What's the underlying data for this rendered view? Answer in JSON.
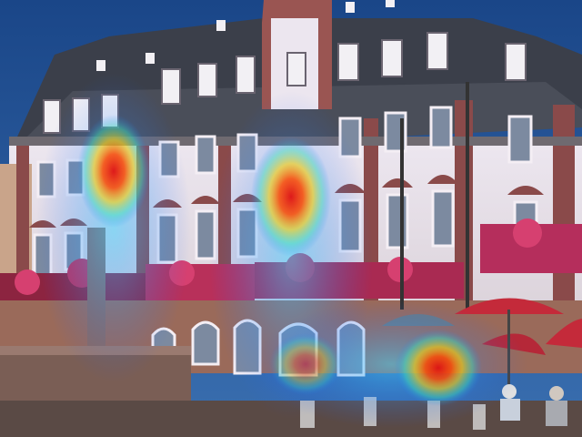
{
  "scene": {
    "subject": "baroque-town-hall-facade",
    "overlay": "attention-heatmap",
    "palette": {
      "sky": "#1e4f8f",
      "roof": "#3b3f4a",
      "facade": "#e8e2ea",
      "stone": "#8a4a4a",
      "window": "#7c8aa0",
      "flowers": "#c2305a",
      "umbrella": "#c42a3a",
      "ground": "#5a4a45"
    },
    "heatmap_peak_color": "#e01010"
  }
}
